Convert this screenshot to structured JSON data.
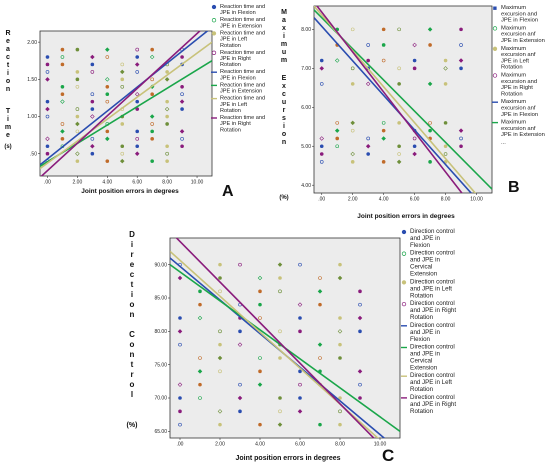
{
  "colors": {
    "flexion": "#2a4db0",
    "extension": "#1aa64a",
    "left_rotation": "#c8c27a",
    "right_rotation": "#8a1c7c",
    "plot_bg": "#ececec",
    "frame": "#333333"
  },
  "chart_data": [
    {
      "type": "scatter",
      "panel_label": "A",
      "ylabel": "Reaction Time (s)",
      "xlabel": "Joint position errors in degrees",
      "xlim": [
        -0.5,
        11
      ],
      "ylim": [
        0.2,
        2.15
      ],
      "x_ticks": [
        ".00",
        "2.00",
        "4.00",
        "6.00",
        "8.00",
        "10.00"
      ],
      "x_tick_values": [
        0,
        2,
        4,
        6,
        8,
        10
      ],
      "y_ticks": [
        ".50",
        "1.00",
        "1.50",
        "2.00"
      ],
      "y_tick_values": [
        0.5,
        1.0,
        1.5,
        2.0
      ],
      "legend": [
        "Reaction time and JPE in Flexion",
        "Reaction time and JPE in Extension",
        "Reaction time and JPE in Left Rotation",
        "Reaction time and JPE in Right Rotation",
        "Reaction time and JPE in Flexion",
        "Reaction time and JPE in Extension",
        "Reaction time and JPE in Left Rotation",
        "Reaction time and JPE in Right Rotation"
      ],
      "fit_lines": [
        {
          "series": "flexion",
          "x": [
            -0.5,
            11
          ],
          "y": [
            0.35,
            2.2
          ]
        },
        {
          "series": "extension",
          "x": [
            -0.5,
            11
          ],
          "y": [
            0.33,
            1.75
          ]
        },
        {
          "series": "left_rotation",
          "x": [
            -0.5,
            11
          ],
          "y": [
            0.3,
            2.0
          ]
        },
        {
          "series": "right_rotation",
          "x": [
            -0.5,
            11
          ],
          "y": [
            0.18,
            2.3
          ]
        }
      ],
      "points_x": [
        0,
        1,
        2,
        3,
        4,
        5,
        6,
        7,
        8,
        9
      ],
      "points_y": [
        0.4,
        0.5,
        0.6,
        0.7,
        0.8,
        0.9,
        1.0,
        1.1,
        1.2,
        1.3,
        1.4,
        1.5,
        1.6,
        1.7,
        1.8,
        1.9
      ]
    },
    {
      "type": "scatter",
      "panel_label": "B",
      "ylabel": "Maximum Excursion (%)",
      "xlabel": "Joint position errors in degrees",
      "xlim": [
        -0.5,
        11
      ],
      "ylim": [
        3.8,
        8.6
      ],
      "x_ticks": [
        ".00",
        "2.00",
        "4.00",
        "6.00",
        "8.00",
        "10.00"
      ],
      "x_tick_values": [
        0,
        2,
        4,
        6,
        8,
        10
      ],
      "y_ticks": [
        "4.00",
        "5.00",
        "6.00",
        "7.00",
        "8.00"
      ],
      "y_tick_values": [
        4,
        5,
        6,
        7,
        8
      ],
      "legend": [
        "Maximum excursion and JPE in Flexion",
        "Maximum excursion anf JPE in Extension",
        "Maximum excursion anf JPE in Left Rotation",
        "Maximum excursion and JPE in Right Rotation",
        "Maximum excursion anf JPE in Flexion",
        "Maximum excursion anf JPE in Extension",
        "..."
      ],
      "fit_lines": [
        {
          "series": "flexion",
          "x": [
            -0.5,
            11
          ],
          "y": [
            8.3,
            3.2
          ]
        },
        {
          "series": "extension",
          "x": [
            -0.5,
            11
          ],
          "y": [
            8.5,
            3.9
          ]
        },
        {
          "series": "left_rotation",
          "x": [
            -0.5,
            11
          ],
          "y": [
            8.6,
            3.3
          ]
        },
        {
          "series": "right_rotation",
          "x": [
            -0.5,
            11
          ],
          "y": [
            8.7,
            2.8
          ]
        }
      ],
      "points_x": [
        0,
        1,
        2,
        3,
        4,
        5,
        6,
        7,
        8,
        9
      ],
      "points_y": [
        4.6,
        4.8,
        5.0,
        5.2,
        5.4,
        5.6,
        6.6,
        7.0,
        7.2,
        7.6,
        8.0
      ]
    },
    {
      "type": "scatter",
      "panel_label": "C",
      "ylabel": "Direction Control (%)",
      "xlabel": "Joint position errors in degrees",
      "xlim": [
        -0.5,
        11
      ],
      "ylim": [
        64,
        94
      ],
      "x_ticks": [
        ".00",
        "2.00",
        "4.00",
        "6.00",
        "8.00",
        "10.00"
      ],
      "x_tick_values": [
        0,
        2,
        4,
        6,
        8,
        10
      ],
      "y_ticks": [
        "65.00",
        "70.00",
        "75.00",
        "80.00",
        "85.00",
        "90.00"
      ],
      "y_tick_values": [
        65,
        70,
        75,
        80,
        85,
        90
      ],
      "legend": [
        "Direction control and JPE in Flexion",
        "Direction control and JPE in Cervical Extension",
        "Direction control and JPE in Left Rotation",
        "Direction control and JPE in Right Rotation",
        "Direction control and JPE in Flexion",
        "Direction control and JPE in Cervical Extension",
        "Direction control and JPE in Left Rotation",
        "Direction control and JPE in Right Rotation"
      ],
      "fit_lines": [
        {
          "series": "flexion",
          "x": [
            -0.5,
            11
          ],
          "y": [
            91,
            62
          ]
        },
        {
          "series": "extension",
          "x": [
            -0.5,
            11
          ],
          "y": [
            90,
            65
          ]
        },
        {
          "series": "left_rotation",
          "x": [
            -0.5,
            11
          ],
          "y": [
            92,
            61
          ]
        },
        {
          "series": "right_rotation",
          "x": [
            -0.5,
            11
          ],
          "y": [
            95,
            60
          ]
        }
      ],
      "points_x": [
        0,
        1,
        2,
        3,
        4,
        5,
        6,
        7,
        8,
        9
      ],
      "points_y": [
        66,
        68,
        70,
        72,
        74,
        76,
        78,
        80,
        82,
        84,
        86,
        88,
        90
      ]
    }
  ]
}
